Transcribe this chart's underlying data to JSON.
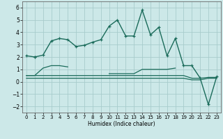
{
  "xlabel": "Humidex (Indice chaleur)",
  "background_color": "#cce8e8",
  "grid_color": "#a8cccc",
  "line_color": "#1a6b5a",
  "xlim": [
    -0.5,
    23.5
  ],
  "ylim": [
    -2.5,
    6.5
  ],
  "x_ticks": [
    0,
    1,
    2,
    3,
    4,
    5,
    6,
    7,
    8,
    9,
    10,
    11,
    12,
    13,
    14,
    15,
    16,
    17,
    18,
    19,
    20,
    21,
    22,
    23
  ],
  "y_ticks": [
    -2,
    -1,
    0,
    1,
    2,
    3,
    4,
    5,
    6
  ],
  "series": [
    {
      "x": [
        0,
        1
      ],
      "y": [
        2.1,
        2.0
      ],
      "marker": true,
      "linewidth": 1.0
    },
    {
      "x": [
        1,
        2,
        3,
        4,
        5,
        6,
        7,
        8,
        9,
        10,
        11,
        12,
        13,
        14,
        15,
        16,
        17,
        18,
        19,
        20,
        21,
        22,
        23
      ],
      "y": [
        2.0,
        2.15,
        3.3,
        3.5,
        3.4,
        2.85,
        2.95,
        3.2,
        3.4,
        4.5,
        5.0,
        3.7,
        3.7,
        5.8,
        3.8,
        4.4,
        2.1,
        3.5,
        1.3,
        1.3,
        0.3,
        -1.85,
        0.4
      ],
      "marker": true,
      "linewidth": 1.0
    },
    {
      "x": [
        0,
        1,
        2,
        3,
        4,
        5
      ],
      "y": [
        0.5,
        0.5,
        1.1,
        1.3,
        1.3,
        1.2
      ],
      "marker": false,
      "linewidth": 0.9
    },
    {
      "x": [
        10,
        11,
        12,
        13,
        14,
        15,
        16,
        17,
        18
      ],
      "y": [
        0.65,
        0.65,
        0.65,
        0.65,
        1.0,
        1.0,
        1.0,
        1.0,
        1.1
      ],
      "marker": false,
      "linewidth": 0.9
    },
    {
      "x": [
        0,
        1,
        2,
        3,
        4,
        5,
        6,
        7,
        8,
        9,
        10,
        11,
        12,
        13,
        14,
        15,
        16,
        17,
        18,
        19,
        20,
        21,
        22,
        23
      ],
      "y": [
        0.5,
        0.5,
        0.5,
        0.5,
        0.5,
        0.5,
        0.5,
        0.5,
        0.5,
        0.5,
        0.5,
        0.5,
        0.5,
        0.5,
        0.5,
        0.5,
        0.5,
        0.5,
        0.5,
        0.5,
        0.28,
        0.28,
        0.35,
        0.35
      ],
      "marker": false,
      "linewidth": 0.9
    },
    {
      "x": [
        0,
        1,
        2,
        3,
        4,
        5,
        6,
        7,
        8,
        9,
        10,
        11,
        12,
        13,
        14,
        15,
        16,
        17,
        18,
        19,
        20,
        21,
        22,
        23
      ],
      "y": [
        0.28,
        0.28,
        0.28,
        0.28,
        0.28,
        0.28,
        0.28,
        0.28,
        0.28,
        0.28,
        0.28,
        0.28,
        0.28,
        0.28,
        0.28,
        0.28,
        0.28,
        0.28,
        0.28,
        0.28,
        0.15,
        0.15,
        0.28,
        0.28
      ],
      "marker": false,
      "linewidth": 0.9
    }
  ]
}
